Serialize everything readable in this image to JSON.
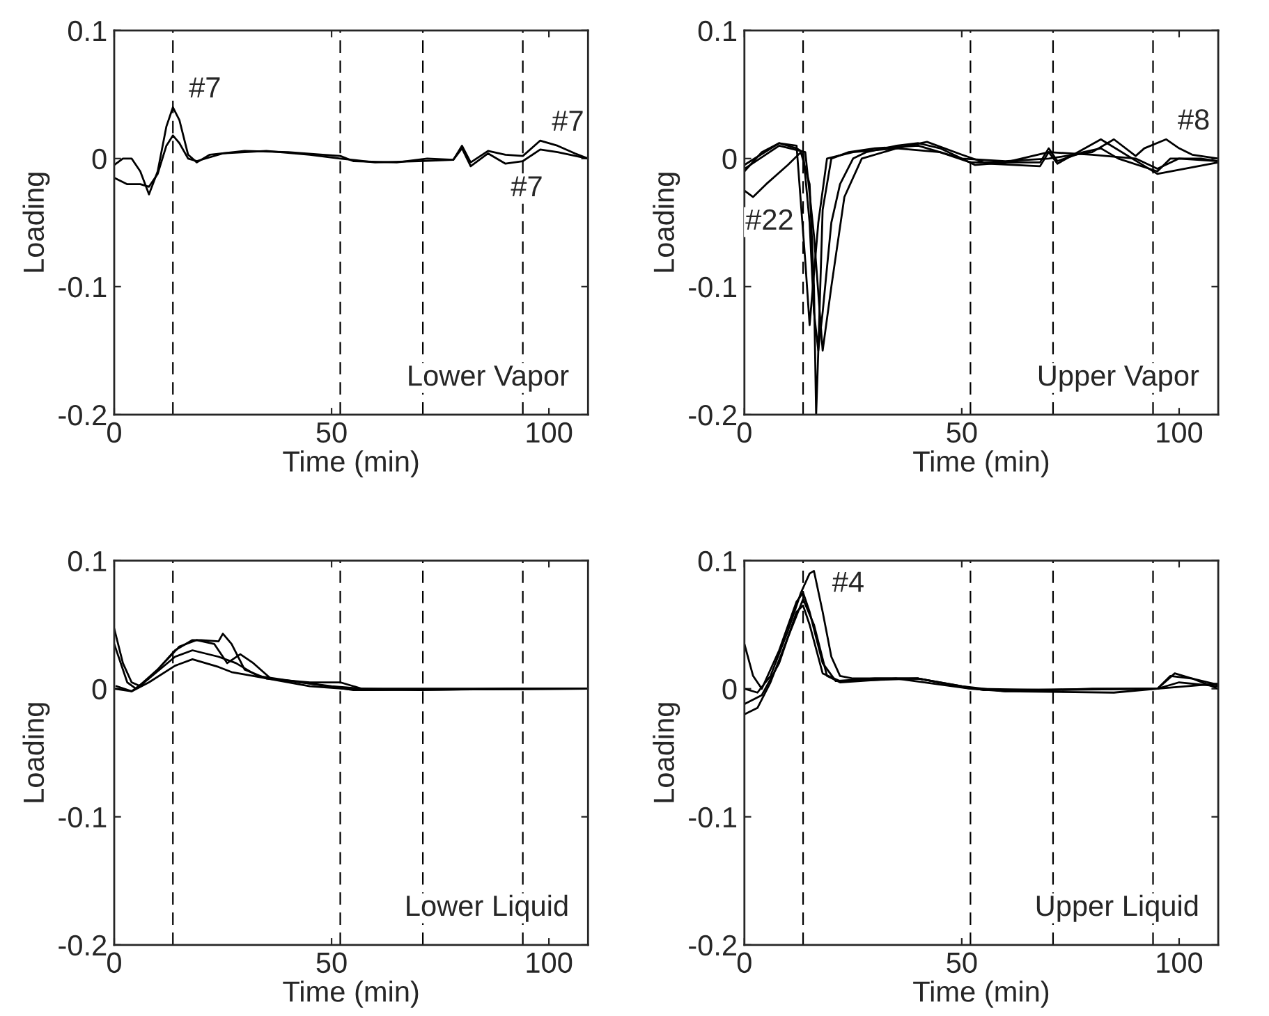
{
  "chart_data": [
    {
      "type": "line",
      "xlabel": "Time (min)",
      "ylabel": "Loading",
      "xlim": [
        0,
        109
      ],
      "ylim": [
        -0.2,
        0.1
      ],
      "xticks": [
        0,
        50,
        100
      ],
      "yticks": [
        -0.2,
        -0.1,
        0,
        0.1
      ],
      "series": [
        {
          "color": "#000000",
          "x": [
            0,
            2,
            4,
            6,
            8,
            10,
            12,
            13.5,
            15,
            17,
            19,
            22,
            30,
            40,
            48,
            52,
            55,
            65,
            72,
            78,
            80,
            82,
            86,
            90,
            94,
            98,
            102,
            106,
            109
          ],
          "values": [
            -0.005,
            0,
            0,
            -0.01,
            -0.028,
            -0.01,
            0.025,
            0.04,
            0.03,
            0.003,
            -0.003,
            0.003,
            0.006,
            0.005,
            0.003,
            0.002,
            -0.002,
            -0.003,
            0,
            -0.001,
            0.01,
            -0.003,
            0.006,
            0.003,
            0.002,
            0.014,
            0.01,
            0.004,
            0
          ]
        },
        {
          "color": "#000000",
          "x": [
            0,
            3,
            6,
            8,
            10,
            12,
            13.5,
            15,
            17,
            19,
            25,
            35,
            45,
            52,
            60,
            70,
            78,
            80,
            82,
            86,
            90,
            94,
            98,
            102,
            109
          ],
          "values": [
            -0.015,
            -0.02,
            -0.02,
            -0.022,
            -0.012,
            0.01,
            0.018,
            0.012,
            0,
            -0.002,
            0.004,
            0.006,
            0.003,
            0,
            -0.003,
            -0.002,
            -0.001,
            0.008,
            -0.006,
            0.004,
            -0.004,
            -0.002,
            0.007,
            0.005,
            0
          ]
        }
      ],
      "ref_lines": [
        {
          "axis": "x",
          "value": 13.5,
          "color": "#000000",
          "line_style": "dashed"
        },
        {
          "axis": "x",
          "value": 52,
          "color": "#000000",
          "line_style": "dashed"
        },
        {
          "axis": "x",
          "value": 71,
          "color": "#000000",
          "line_style": "dashed"
        },
        {
          "axis": "x",
          "value": 94,
          "color": "#000000",
          "line_style": "dashed"
        }
      ],
      "annotations": [
        {
          "text": "#7",
          "x": 14.5,
          "y": 0.04
        },
        {
          "text": "#7",
          "x": 98,
          "y": 0.014
        },
        {
          "text": "#7",
          "x": 93,
          "y": -0.004
        },
        "Lower Vapor"
      ]
    },
    {
      "type": "line",
      "xlabel": "Time (min)",
      "ylabel": "Loading",
      "xlim": [
        0,
        109
      ],
      "ylim": [
        -0.2,
        0.1
      ],
      "xticks": [
        0,
        50,
        100
      ],
      "yticks": [
        -0.2,
        -0.1,
        0,
        0.1
      ],
      "series": [
        {
          "color": "#000000",
          "x": [
            0,
            4,
            8,
            12,
            13.5,
            15,
            16,
            17,
            18,
            20,
            22,
            25,
            28,
            35,
            40,
            45,
            50,
            53,
            60,
            68,
            70,
            72,
            78,
            82,
            86,
            95,
            98,
            105,
            109
          ],
          "values": [
            -0.01,
            0.005,
            0.012,
            0.008,
            0.005,
            -0.05,
            -0.12,
            -0.15,
            -0.12,
            -0.05,
            -0.02,
            0,
            0.005,
            0.01,
            0.012,
            0.008,
            0,
            -0.005,
            -0.003,
            -0.003,
            0.008,
            -0.002,
            0.005,
            0.008,
            0,
            -0.01,
            0,
            0,
            -0.002
          ]
        },
        {
          "color": "#000000",
          "x": [
            0,
            2,
            5,
            10,
            13,
            15,
            16,
            16.5,
            17,
            18,
            20,
            24,
            30,
            40,
            50,
            60,
            70,
            80,
            85,
            90,
            92,
            97,
            100,
            103,
            109
          ],
          "values": [
            -0.025,
            -0.03,
            -0.02,
            -0.005,
            0.005,
            -0.02,
            -0.1,
            -0.2,
            -0.15,
            -0.04,
            0,
            0.005,
            0.008,
            0.01,
            0.0,
            -0.002,
            0.0,
            0.005,
            0.015,
            0.002,
            0.008,
            0.015,
            0.008,
            0.003,
            0
          ]
        },
        {
          "color": "#000000",
          "x": [
            0,
            8,
            12,
            14,
            15,
            17,
            19,
            25,
            35,
            45,
            52,
            60,
            70,
            80,
            90,
            95,
            100,
            109
          ],
          "values": [
            -0.005,
            0.012,
            0.01,
            -0.08,
            -0.13,
            -0.05,
            0,
            0.005,
            0.008,
            0.005,
            -0.003,
            -0.003,
            0.005,
            0.003,
            0,
            -0.008,
            0,
            -0.002
          ]
        },
        {
          "color": "#000000",
          "x": [
            0,
            8,
            14,
            16,
            18,
            20,
            23,
            27,
            35,
            42,
            50,
            56,
            68,
            70,
            72,
            82,
            95,
            109
          ],
          "values": [
            -0.008,
            0.01,
            0.005,
            -0.06,
            -0.15,
            -0.1,
            -0.03,
            0,
            0.008,
            0.013,
            0.003,
            -0.004,
            -0.006,
            0.005,
            -0.004,
            0.015,
            -0.012,
            -0.003
          ]
        }
      ],
      "ref_lines": [
        {
          "axis": "x",
          "value": 13.5,
          "color": "#000000",
          "line_style": "dashed"
        },
        {
          "axis": "x",
          "value": 52,
          "color": "#000000",
          "line_style": "dashed"
        },
        {
          "axis": "x",
          "value": 71,
          "color": "#000000",
          "line_style": "dashed"
        },
        {
          "axis": "x",
          "value": 94,
          "color": "#000000",
          "line_style": "dashed"
        }
      ],
      "annotations": [
        {
          "text": "#22",
          "x": 2,
          "y": -0.03
        },
        {
          "text": "#8",
          "x": 97,
          "y": 0.015
        },
        "Upper Vapor"
      ]
    },
    {
      "type": "line",
      "xlabel": "Time (min)",
      "ylabel": "Loading",
      "xlim": [
        0,
        109
      ],
      "ylim": [
        -0.2,
        0.1
      ],
      "xticks": [
        0,
        50,
        100
      ],
      "yticks": [
        -0.2,
        -0.1,
        0,
        0.1
      ],
      "series": [
        {
          "color": "#000000",
          "x": [
            0,
            2,
            4,
            6,
            10,
            14,
            18,
            20,
            24,
            25,
            27,
            30,
            35,
            45,
            52,
            57,
            70,
            90,
            109
          ],
          "values": [
            0.047,
            0.02,
            0.005,
            0.002,
            0.015,
            0.03,
            0.038,
            0.038,
            0.037,
            0.043,
            0.035,
            0.015,
            0.008,
            0.005,
            0.005,
            0,
            -0.001,
            0,
            0
          ]
        },
        {
          "color": "#000000",
          "x": [
            0,
            3,
            5,
            10,
            15,
            19,
            23,
            26,
            29,
            32,
            36,
            50,
            57,
            80,
            109
          ],
          "values": [
            0.035,
            0.005,
            0,
            0.015,
            0.033,
            0.038,
            0.035,
            0.02,
            0.027,
            0.02,
            0.008,
            0.002,
            0,
            0,
            0
          ]
        },
        {
          "color": "#000000",
          "x": [
            0,
            4,
            8,
            14,
            18,
            24,
            28,
            33,
            45,
            55,
            109
          ],
          "values": [
            0,
            -0.002,
            0.008,
            0.025,
            0.03,
            0.025,
            0.02,
            0.01,
            0.004,
            -0.001,
            0
          ]
        },
        {
          "color": "#000000",
          "x": [
            0.5,
            4,
            8,
            14,
            18,
            24,
            27,
            32,
            45,
            57,
            109
          ],
          "values": [
            0.002,
            -0.002,
            0.005,
            0.018,
            0.023,
            0.017,
            0.013,
            0.01,
            0.002,
            -0.001,
            0
          ]
        }
      ],
      "ref_lines": [
        {
          "axis": "x",
          "value": 13.5,
          "color": "#000000",
          "line_style": "dashed"
        },
        {
          "axis": "x",
          "value": 52,
          "color": "#000000",
          "line_style": "dashed"
        },
        {
          "axis": "x",
          "value": 71,
          "color": "#000000",
          "line_style": "dashed"
        },
        {
          "axis": "x",
          "value": 94,
          "color": "#000000",
          "line_style": "dashed"
        }
      ],
      "annotations": [
        "Lower Liquid"
      ]
    },
    {
      "type": "line",
      "xlabel": "Time (min)",
      "ylabel": "Loading",
      "xlim": [
        0,
        109
      ],
      "ylim": [
        -0.2,
        0.1
      ],
      "xticks": [
        0,
        50,
        100
      ],
      "yticks": [
        -0.2,
        -0.1,
        0,
        0.1
      ],
      "series": [
        {
          "color": "#000000",
          "x": [
            0,
            3,
            6,
            10,
            13,
            15,
            16,
            18,
            20,
            22,
            25,
            40,
            50,
            60,
            80,
            95,
            98,
            103,
            109
          ],
          "values": [
            0,
            -0.003,
            0.01,
            0.045,
            0.075,
            0.09,
            0.092,
            0.06,
            0.025,
            0.01,
            0.008,
            0.008,
            0.002,
            -0.002,
            0,
            0,
            0.01,
            0.008,
            0.003
          ]
        },
        {
          "color": "#000000",
          "x": [
            0,
            2,
            4,
            8,
            12,
            13.5,
            15,
            18,
            21,
            30,
            40,
            52,
            60,
            85,
            95,
            99,
            103,
            109
          ],
          "values": [
            0.035,
            0.01,
            0,
            0.03,
            0.068,
            0.075,
            0.06,
            0.02,
            0.006,
            0.008,
            0.008,
            0,
            -0.002,
            -0.003,
            0,
            0.012,
            0.008,
            0
          ]
        },
        {
          "color": "#000000",
          "x": [
            0,
            3,
            6,
            10,
            13.5,
            16,
            19,
            22,
            35,
            52,
            70,
            95,
            109
          ],
          "values": [
            -0.02,
            -0.015,
            0.005,
            0.04,
            0.07,
            0.05,
            0.01,
            0.005,
            0.008,
            0,
            -0.001,
            0,
            0.004
          ]
        },
        {
          "color": "#000000",
          "x": [
            0,
            4,
            8,
            12,
            13.5,
            15,
            18,
            22,
            40,
            55,
            95,
            100,
            109
          ],
          "values": [
            -0.012,
            -0.005,
            0.02,
            0.06,
            0.065,
            0.05,
            0.012,
            0.006,
            0.008,
            -0.001,
            0,
            0.005,
            0.002
          ]
        }
      ],
      "ref_lines": [
        {
          "axis": "x",
          "value": 13.5,
          "color": "#000000",
          "line_style": "dashed"
        },
        {
          "axis": "x",
          "value": 52,
          "color": "#000000",
          "line_style": "dashed"
        },
        {
          "axis": "x",
          "value": 71,
          "color": "#000000",
          "line_style": "dashed"
        },
        {
          "axis": "x",
          "value": 94,
          "color": "#000000",
          "line_style": "dashed"
        }
      ],
      "annotations": [
        {
          "text": "#4",
          "x": 17.5,
          "y": 0.068
        },
        "Upper Liquid"
      ]
    }
  ]
}
